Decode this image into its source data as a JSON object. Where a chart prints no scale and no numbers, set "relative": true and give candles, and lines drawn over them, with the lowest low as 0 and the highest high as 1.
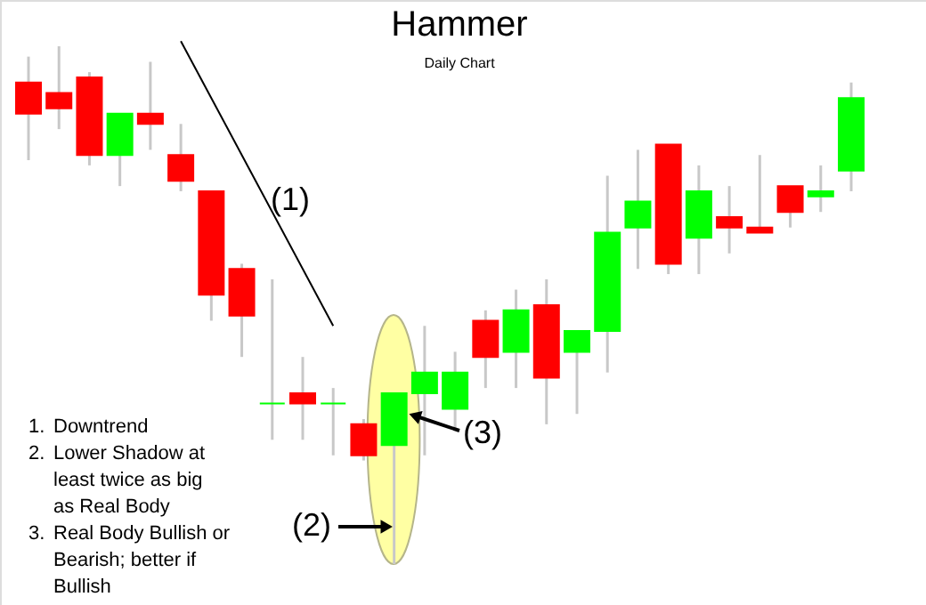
{
  "chart_data": {
    "type": "candlestick",
    "title": "Hammer",
    "subtitle": "Daily Chart",
    "relative": true,
    "categories": [
      null,
      null,
      null,
      null,
      null,
      null,
      null,
      null,
      null,
      null,
      null,
      null,
      null,
      null,
      null,
      null,
      null,
      null,
      null,
      null,
      null,
      null,
      null,
      null,
      null,
      null,
      null,
      null
    ],
    "ohlc": [
      [
        0.93,
        0.98,
        0.78,
        0.87
      ],
      [
        0.91,
        1.0,
        0.84,
        0.88
      ],
      [
        0.94,
        0.95,
        0.77,
        0.79
      ],
      [
        0.79,
        0.87,
        0.73,
        0.87
      ],
      [
        0.87,
        0.97,
        0.8,
        0.85
      ],
      [
        0.79,
        0.85,
        0.72,
        0.74
      ],
      [
        0.72,
        0.72,
        0.47,
        0.52
      ],
      [
        0.57,
        0.58,
        0.4,
        0.48
      ],
      [
        0.31,
        0.55,
        0.24,
        0.31
      ],
      [
        0.33,
        0.4,
        0.24,
        0.31
      ],
      [
        0.31,
        0.34,
        0.21,
        0.31
      ],
      [
        0.27,
        0.28,
        0.2,
        0.21
      ],
      [
        0.23,
        0.33,
        0.0,
        0.33
      ],
      [
        0.33,
        0.46,
        0.21,
        0.37
      ],
      [
        0.3,
        0.41,
        0.26,
        0.37
      ],
      [
        0.47,
        0.49,
        0.34,
        0.4
      ],
      [
        0.41,
        0.53,
        0.34,
        0.49
      ],
      [
        0.5,
        0.55,
        0.27,
        0.36
      ],
      [
        0.41,
        0.45,
        0.29,
        0.45
      ],
      [
        0.45,
        0.75,
        0.37,
        0.64
      ],
      [
        0.65,
        0.8,
        0.57,
        0.7
      ],
      [
        0.81,
        0.81,
        0.56,
        0.58
      ],
      [
        0.63,
        0.77,
        0.56,
        0.72
      ],
      [
        0.67,
        0.73,
        0.6,
        0.65
      ],
      [
        0.65,
        0.79,
        0.64,
        0.64
      ],
      [
        0.73,
        0.73,
        0.65,
        0.68
      ],
      [
        0.71,
        0.77,
        0.68,
        0.72
      ],
      [
        0.76,
        0.93,
        0.72,
        0.9
      ]
    ],
    "colors": [
      "#ff0000",
      "#ff0000",
      "#ff0000",
      "#00ff00",
      "#ff0000",
      "#ff0000",
      "#ff0000",
      "#ff0000",
      "#00ff00",
      "#ff0000",
      "#00ff00",
      "#ff0000",
      "#00ff00",
      "#00ff00",
      "#00ff00",
      "#ff0000",
      "#00ff00",
      "#ff0000",
      "#00ff00",
      "#00ff00",
      "#00ff00",
      "#ff0000",
      "#00ff00",
      "#ff0000",
      "#ff0000",
      "#ff0000",
      "#00ff00",
      "#00ff00"
    ],
    "series": [
      {
        "type": "line",
        "values": [
          null,
          null,
          null,
          null,
          null,
          1.01,
          0.9,
          0.79,
          0.68,
          0.57,
          0.46,
          null,
          null,
          null,
          null,
          null,
          null,
          null,
          null,
          null,
          null,
          null,
          null,
          null,
          null,
          null,
          null,
          null
        ],
        "color": "#000000"
      }
    ],
    "annotations": [
      "(1)",
      "(2)",
      "(3)",
      "1. Downtrend",
      "2. Lower Shadow at least twice as big as Real Body",
      "3. Real Body Bullish or Bearish; better if Bullish"
    ]
  }
}
